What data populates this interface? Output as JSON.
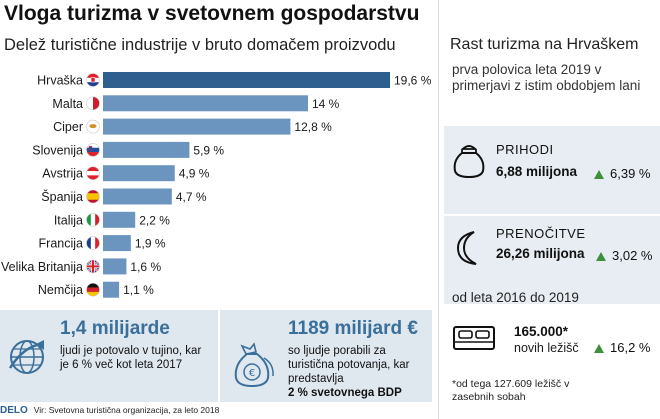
{
  "header": {
    "title": "Vloga turizma v svetovnem gospodarstvu",
    "subtitle": "Delež turistične industrije v bruto domačem proizvodu"
  },
  "chart_data": {
    "type": "bar",
    "orientation": "horizontal",
    "categories": [
      "Hrvaška",
      "Malta",
      "Ciper",
      "Slovenija",
      "Avstrija",
      "Španija",
      "Italija",
      "Francija",
      "Velika Britanija",
      "Nemčija"
    ],
    "values": [
      19.6,
      14,
      12.8,
      5.9,
      4.9,
      4.7,
      2.2,
      1.9,
      1.6,
      1.1
    ],
    "value_labels": [
      "19,6 %",
      "14 %",
      "12,8 %",
      "5,9 %",
      "4,9 %",
      "4,7 %",
      "2,2 %",
      "1,9 %",
      "1,6 %",
      "1,1 %"
    ],
    "xlim": [
      0,
      19.6
    ],
    "bar_colors": [
      "#2f5f8f",
      "#6b95be",
      "#6b95be",
      "#6b95be",
      "#6b95be",
      "#6b95be",
      "#6b95be",
      "#6b95be",
      "#6b95be",
      "#6b95be"
    ],
    "flag_icons": [
      "croatia-flag-icon",
      "malta-flag-icon",
      "cyprus-flag-icon",
      "slovenia-flag-icon",
      "austria-flag-icon",
      "spain-flag-icon",
      "italy-flag-icon",
      "france-flag-icon",
      "uk-flag-icon",
      "germany-flag-icon"
    ],
    "title": "Delež turistične industrije v bruto domačem proizvodu"
  },
  "infobox_left": {
    "big": "1,4 milijarde",
    "text": "ljudi je potovalo v tujino, kar je 6 % več kot leta 2017",
    "icon": "globe-arrow-icon"
  },
  "infobox_right": {
    "big": "1189 milijard €",
    "text": "so ljudje porabili za turistična potovanja, kar predstavlja",
    "bold": "2 % svetovnega BDP",
    "icon": "money-bags-icon"
  },
  "source": {
    "brand": "DELO",
    "text": "Vir: Svetovna turistična organizacija, za leto 2018"
  },
  "panel": {
    "title": "Rast turizma na Hrvaškem",
    "subtitle": "prva polovica leta 2019 v primerjavi z istim obdobjem lani",
    "cards": [
      {
        "label": "PRIHODI",
        "value": "6,88 milijona",
        "change": "6,39 %",
        "icon": "money-bag-icon"
      },
      {
        "label": "PRENOČITVE",
        "value": "26,26 milijona",
        "change": "3,02 %",
        "icon": "moon-icon"
      }
    ],
    "period": "od leta 2016 do 2019",
    "beds": {
      "value": "165.000*",
      "label": "novih ležišč",
      "change": "16,2 %",
      "icon": "bed-icon"
    },
    "footnote": "*od tega 127.609 ležišč v zasebnih sobah"
  },
  "colors": {
    "accent": "#3a6f9b",
    "bar_primary": "#2f5f8f",
    "bar_secondary": "#6b95be",
    "box_bg": "#dfe7ef",
    "up": "#3f8f3a"
  }
}
